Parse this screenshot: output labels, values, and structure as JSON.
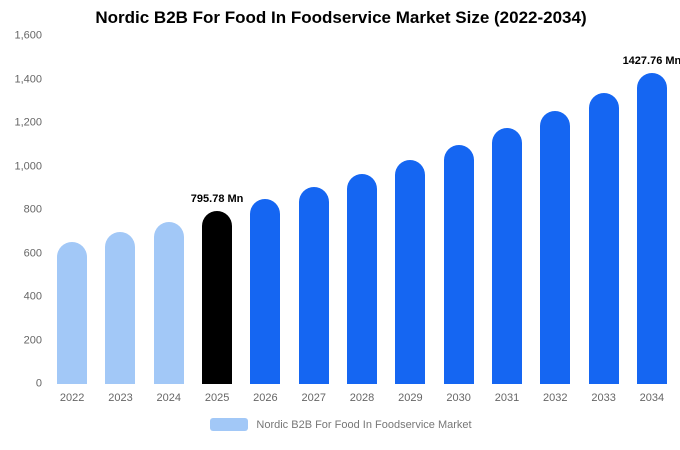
{
  "title": "Nordic B2B For Food In Foodservice Market Size (2022-2034)",
  "legend": {
    "label": "Nordic B2B For Food In Foodservice Market",
    "swatch_color": "#a2c8f7"
  },
  "chart_data": {
    "type": "bar",
    "title": "Nordic B2B For Food In Foodservice Market Size (2022-2034)",
    "categories": [
      "2022",
      "2023",
      "2024",
      "2025",
      "2026",
      "2027",
      "2028",
      "2029",
      "2030",
      "2031",
      "2032",
      "2033",
      "2034"
    ],
    "values": [
      655,
      699,
      746,
      795.78,
      849,
      906,
      967,
      1032,
      1101,
      1175,
      1254,
      1338,
      1427.76
    ],
    "xlabel": "",
    "ylabel": "",
    "ylim": [
      0,
      1600
    ],
    "grid": false,
    "legend_position": "bottom",
    "y_ticks": [
      {
        "value": 0,
        "label": "0"
      },
      {
        "value": 200,
        "label": "200"
      },
      {
        "value": 400,
        "label": "400"
      },
      {
        "value": 600,
        "label": "600"
      },
      {
        "value": 800,
        "label": "800"
      },
      {
        "value": 1000,
        "label": "1,000"
      },
      {
        "value": 1200,
        "label": "1,200"
      },
      {
        "value": 1400,
        "label": "1,400"
      },
      {
        "value": 1600,
        "label": "1,600"
      }
    ],
    "colors": {
      "historical": "#a2c8f7",
      "highlight": "#000000",
      "forecast": "#1566f2"
    },
    "color_keys": [
      "historical",
      "historical",
      "historical",
      "highlight",
      "forecast",
      "forecast",
      "forecast",
      "forecast",
      "forecast",
      "forecast",
      "forecast",
      "forecast",
      "forecast"
    ],
    "annotations": [
      {
        "category": "2025",
        "text": "795.78 Mn"
      },
      {
        "category": "2034",
        "text": "1427.76 Mn"
      }
    ]
  }
}
